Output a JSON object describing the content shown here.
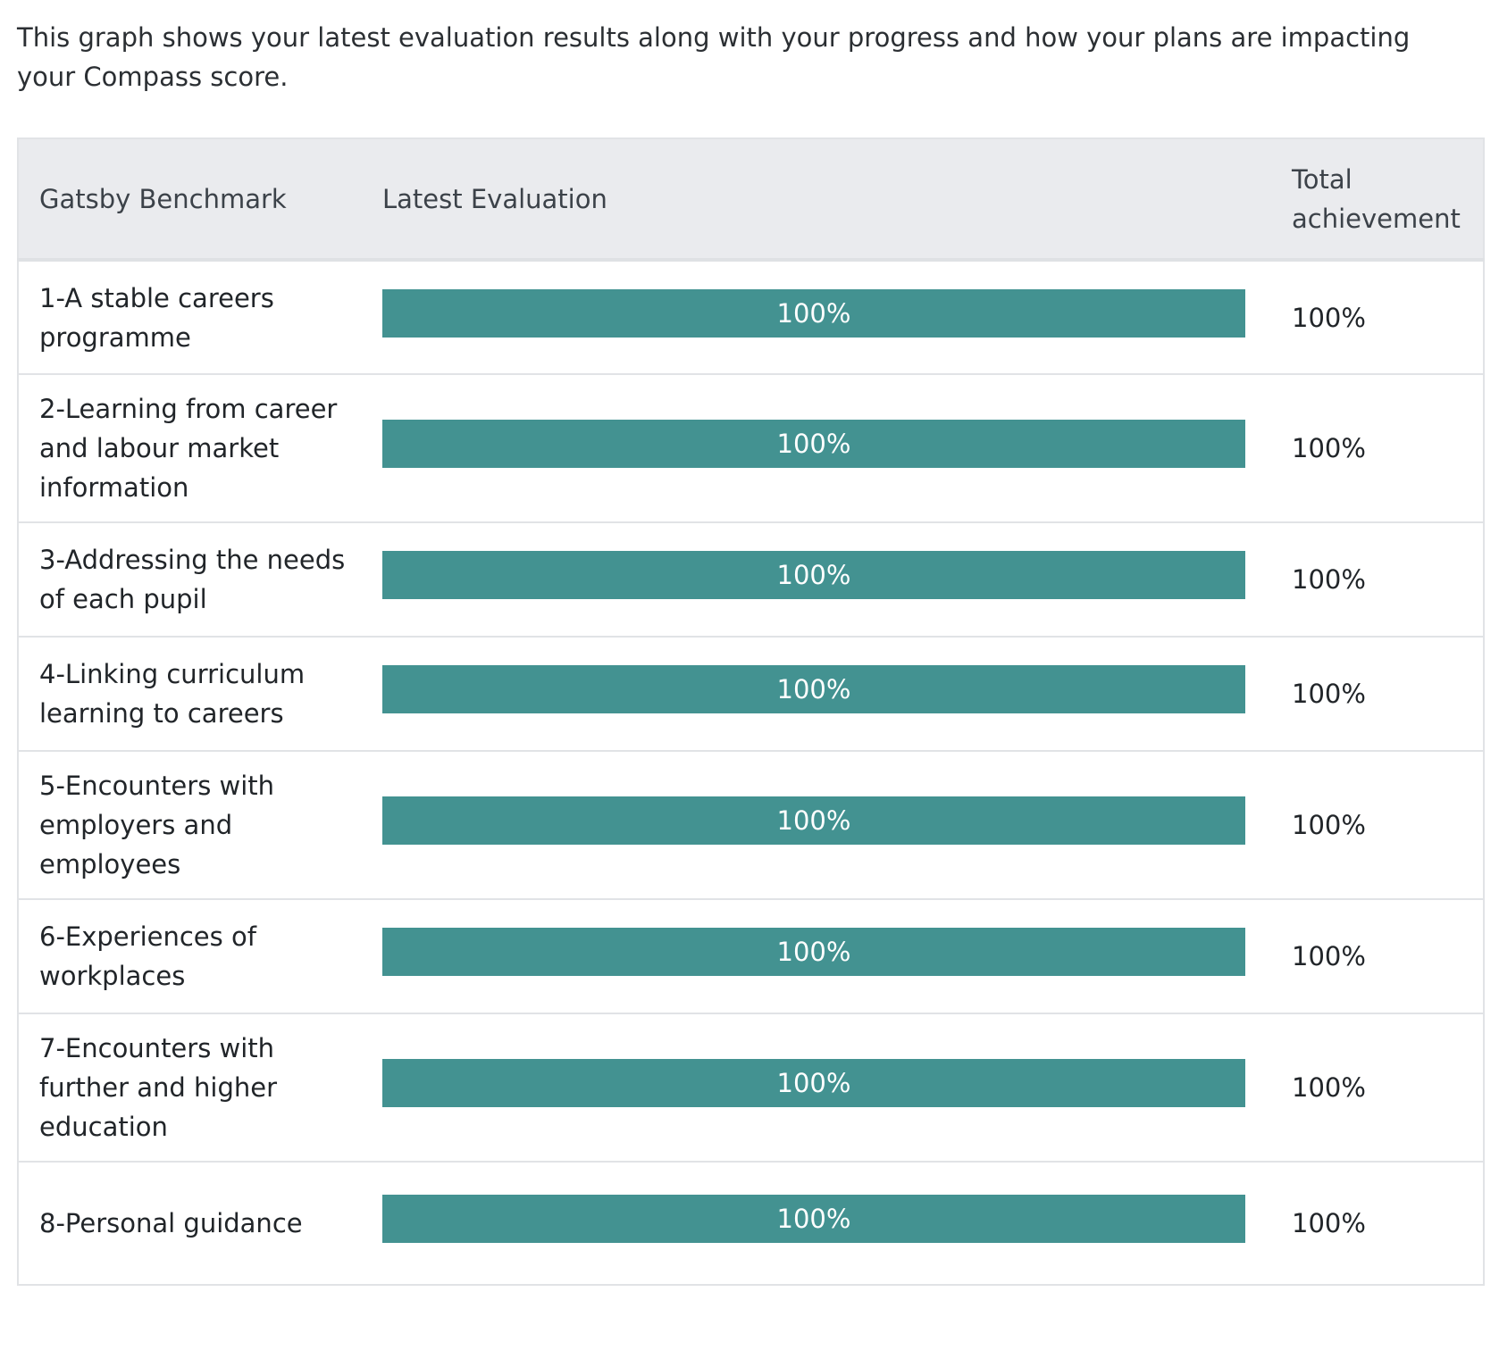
{
  "intro_text": "This graph shows your latest evaluation results along with your progress and how your plans are impacting your Compass score.",
  "table": {
    "headers": {
      "benchmark": "Gatsby Benchmark",
      "evaluation": "Latest Evaluation",
      "total": "Total achievement"
    },
    "bar_color": "#439291",
    "rows": [
      {
        "name": "1-A stable careers programme",
        "evaluation_pct": 100,
        "evaluation_label": "100%",
        "total": "100%"
      },
      {
        "name": "2-Learning from career and labour market information",
        "evaluation_pct": 100,
        "evaluation_label": "100%",
        "total": "100%"
      },
      {
        "name": "3-Addressing the needs of each pupil",
        "evaluation_pct": 100,
        "evaluation_label": "100%",
        "total": "100%"
      },
      {
        "name": "4-Linking curriculum learning to careers",
        "evaluation_pct": 100,
        "evaluation_label": "100%",
        "total": "100%"
      },
      {
        "name": "5-Encounters with employers and employees",
        "evaluation_pct": 100,
        "evaluation_label": "100%",
        "total": "100%"
      },
      {
        "name": "6-Experiences of workplaces",
        "evaluation_pct": 100,
        "evaluation_label": "100%",
        "total": "100%"
      },
      {
        "name": "7-Encounters with further and higher education",
        "evaluation_pct": 100,
        "evaluation_label": "100%",
        "total": "100%"
      },
      {
        "name": "8-Personal guidance",
        "evaluation_pct": 100,
        "evaluation_label": "100%",
        "total": "100%"
      }
    ]
  }
}
